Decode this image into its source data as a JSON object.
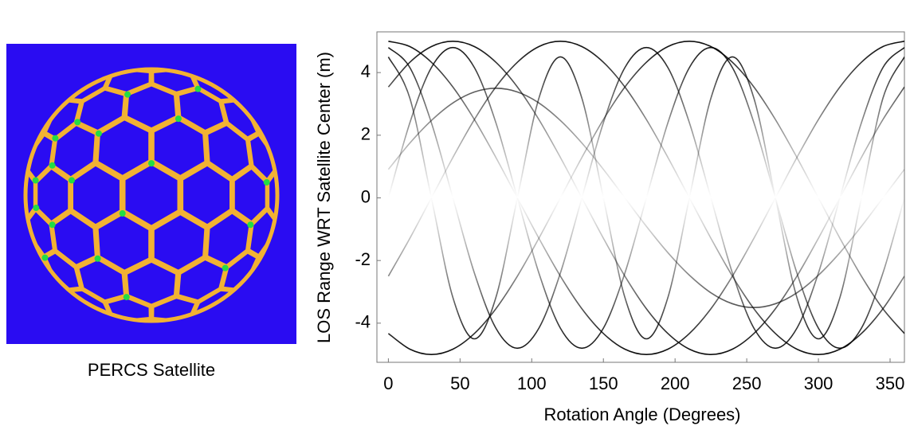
{
  "image_caption": "PERCS Satellite",
  "chart_data": {
    "type": "line",
    "xlabel": "Rotation Angle (Degrees)",
    "ylabel": "LOS Range WRT Satellite Center (m)",
    "x": [
      0,
      15,
      30,
      45,
      60,
      75,
      90,
      105,
      120,
      135,
      150,
      165,
      180,
      195,
      210,
      225,
      240,
      255,
      270,
      285,
      300,
      315,
      330,
      345,
      360
    ],
    "xlim": [
      -8,
      360
    ],
    "ylim": [
      -5.25,
      5.3
    ],
    "xticks": [
      0,
      50,
      100,
      150,
      200,
      250,
      300,
      350
    ],
    "yticks": [
      -4,
      -2,
      0,
      2,
      4
    ],
    "color": "#000000",
    "series": [
      {
        "values": [
          5,
          4.83,
          4.33,
          3.54,
          2.5,
          1.29,
          0,
          -1.29,
          -2.5,
          -3.54,
          -4.33,
          -4.83,
          -5,
          -4.83,
          -4.33,
          -3.54,
          -2.5,
          -1.29,
          0,
          1.29,
          2.5,
          3.54,
          4.33,
          4.83,
          5
        ]
      },
      {
        "values": [
          3.54,
          4.33,
          4.83,
          5,
          4.83,
          4.33,
          3.54,
          2.5,
          1.29,
          0,
          -1.29,
          -2.5,
          -3.54,
          -4.33,
          -4.83,
          -5,
          -4.83,
          -4.33,
          -3.54,
          -2.5,
          -1.29,
          0,
          1.29,
          2.5,
          3.54
        ]
      },
      {
        "values": [
          -2.5,
          -1.29,
          0,
          1.29,
          2.5,
          3.54,
          4.33,
          4.83,
          5,
          4.83,
          4.33,
          3.54,
          2.5,
          1.29,
          0,
          -1.29,
          -2.5,
          -3.54,
          -4.33,
          -4.83,
          -5,
          -4.83,
          -4.33,
          -3.54,
          -2.5
        ]
      },
      {
        "values": [
          -4.33,
          -4.83,
          -5,
          -4.83,
          -4.33,
          -3.54,
          -2.5,
          -1.29,
          0,
          1.29,
          2.5,
          3.54,
          4.33,
          4.83,
          5,
          4.83,
          4.33,
          3.54,
          2.5,
          1.29,
          0,
          -1.29,
          -2.5,
          -3.54,
          -4.33
        ]
      },
      {
        "values": [
          4.8,
          4.16,
          2.4,
          0,
          -2.4,
          -4.16,
          -4.8,
          -4.16,
          -2.4,
          0,
          2.4,
          4.16,
          4.8,
          4.16,
          2.4,
          0,
          -2.4,
          -4.16,
          -4.8,
          -4.16,
          -2.4,
          0,
          2.4,
          4.16,
          4.8
        ]
      },
      {
        "values": [
          0,
          2.4,
          4.16,
          4.8,
          4.16,
          2.4,
          0,
          -2.4,
          -4.16,
          -4.8,
          -4.16,
          -2.4,
          0,
          2.4,
          4.16,
          4.8,
          4.16,
          2.4,
          0,
          -2.4,
          -4.16,
          -4.8,
          -4.16,
          -2.4,
          0
        ]
      },
      {
        "values": [
          0.91,
          1.75,
          2.47,
          3.03,
          3.38,
          3.5,
          3.38,
          3.03,
          2.47,
          1.75,
          0.91,
          0,
          -0.91,
          -1.75,
          -2.47,
          -3.03,
          -3.38,
          -3.5,
          -3.38,
          -3.03,
          -2.47,
          -1.75,
          -0.91,
          0,
          0.91
        ]
      },
      {
        "values": [
          4.5,
          3.18,
          0,
          -3.18,
          -4.5,
          -3.18,
          0,
          3.18,
          4.5,
          3.18,
          0,
          -3.18,
          -4.5,
          -3.18,
          0,
          3.18,
          4.5,
          3.18,
          0,
          -3.18,
          -4.5,
          -3.18,
          0,
          3.18,
          4.5
        ]
      }
    ]
  }
}
